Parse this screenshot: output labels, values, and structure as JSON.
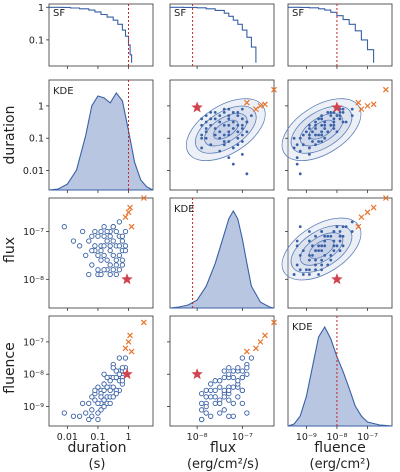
{
  "chart_data": {
    "type": "scatter",
    "grid": "corner",
    "variables": [
      {
        "key": "duration",
        "ylabel": "duration",
        "xlabel": "duration",
        "unit": "(s)",
        "ticks": [
          "0.01",
          "0.1",
          "1"
        ],
        "range_log10": [
          -2.6,
          0.8
        ]
      },
      {
        "key": "flux",
        "ylabel": "flux",
        "xlabel": "flux",
        "unit": "(erg/cm²/s)",
        "ticks": [
          "10⁻⁸",
          "10⁻⁷"
        ],
        "range_log10": [
          -8.6,
          -6.3
        ]
      },
      {
        "key": "fluence",
        "ylabel": "fluence",
        "xlabel": "fluence",
        "unit": "(erg/cm²)",
        "ticks": [
          "10⁻⁹",
          "10⁻⁸",
          "10⁻⁷"
        ],
        "range_log10": [
          -9.6,
          -6.2
        ]
      }
    ],
    "sf_panel": {
      "label": "SF",
      "yticks": [
        "1",
        "0.1"
      ],
      "survival_top": [
        {
          "x_log10": [
            -2.6,
            -2.2,
            -1.9,
            -1.6,
            -1.3,
            -1.1,
            -0.9,
            -0.7,
            -0.5,
            -0.35,
            -0.2,
            -0.1,
            0.0,
            0.05,
            0.1
          ],
          "sf": [
            1,
            0.99,
            0.95,
            0.9,
            0.82,
            0.72,
            0.6,
            0.5,
            0.4,
            0.3,
            0.2,
            0.13,
            0.07,
            0.035,
            0.02
          ]
        },
        {
          "x_log10": [
            -8.6,
            -8.3,
            -8.0,
            -7.8,
            -7.6,
            -7.4,
            -7.3,
            -7.2,
            -7.1,
            -7.0,
            -6.9,
            -6.8,
            -6.7
          ],
          "sf": [
            1,
            0.99,
            0.96,
            0.9,
            0.8,
            0.66,
            0.53,
            0.4,
            0.3,
            0.2,
            0.12,
            0.06,
            0.02
          ]
        },
        {
          "x_log10": [
            -9.6,
            -9.2,
            -8.9,
            -8.6,
            -8.4,
            -8.2,
            -8.0,
            -7.8,
            -7.6,
            -7.4,
            -7.2,
            -7.0,
            -6.8
          ],
          "sf": [
            1,
            0.99,
            0.96,
            0.9,
            0.82,
            0.7,
            0.55,
            0.42,
            0.3,
            0.19,
            0.1,
            0.05,
            0.02
          ]
        }
      ],
      "threshold_log10": [
        0.0,
        -8.1,
        -8.0
      ]
    },
    "kde_label": "KDE",
    "kde_diag": [
      {
        "x": [
          -2.6,
          -2.3,
          -2.0,
          -1.7,
          -1.4,
          -1.2,
          -1.0,
          -0.8,
          -0.6,
          -0.4,
          -0.2,
          0.0,
          0.2,
          0.4,
          0.6,
          0.8
        ],
        "y": [
          0.0,
          0.01,
          0.06,
          0.2,
          0.55,
          0.85,
          0.95,
          0.93,
          0.88,
          0.98,
          0.9,
          0.6,
          0.28,
          0.1,
          0.03,
          0.0
        ]
      },
      {
        "x": [
          -8.6,
          -8.4,
          -8.2,
          -8.0,
          -7.8,
          -7.6,
          -7.4,
          -7.3,
          -7.2,
          -7.1,
          -7.0,
          -6.9,
          -6.8,
          -6.6,
          -6.4,
          -6.3
        ],
        "y": [
          0.0,
          0.01,
          0.03,
          0.08,
          0.22,
          0.45,
          0.75,
          0.9,
          0.98,
          0.9,
          0.7,
          0.45,
          0.22,
          0.06,
          0.01,
          0.0
        ]
      },
      {
        "x": [
          -9.6,
          -9.4,
          -9.2,
          -9.0,
          -8.8,
          -8.6,
          -8.4,
          -8.2,
          -8.0,
          -7.8,
          -7.6,
          -7.4,
          -7.2,
          -7.0,
          -6.6,
          -6.2
        ],
        "y": [
          0.0,
          0.02,
          0.1,
          0.3,
          0.6,
          0.9,
          1.0,
          0.88,
          0.7,
          0.55,
          0.38,
          0.2,
          0.1,
          0.04,
          0.01,
          0.0
        ]
      }
    ],
    "samples": [
      [
        -0.3,
        -7.1,
        -7.9
      ],
      [
        -0.6,
        -7.3,
        -8.4
      ],
      [
        -0.9,
        -7.0,
        -8.5
      ],
      [
        -1.1,
        -7.4,
        -8.6
      ],
      [
        -0.5,
        -6.9,
        -7.7
      ],
      [
        -0.2,
        -7.2,
        -7.9
      ],
      [
        -0.8,
        -7.5,
        -8.8
      ],
      [
        -1.3,
        -7.2,
        -8.9
      ],
      [
        -0.4,
        -7.6,
        -8.5
      ],
      [
        -0.7,
        -7.8,
        -8.9
      ],
      [
        -1.0,
        -7.1,
        -8.4
      ],
      [
        -0.1,
        -7.3,
        -7.8
      ],
      [
        -0.6,
        -7.0,
        -8.1
      ],
      [
        -1.5,
        -7.0,
        -8.9
      ],
      [
        -0.9,
        -7.6,
        -8.9
      ],
      [
        -0.3,
        -7.5,
        -8.2
      ],
      [
        -0.5,
        -7.2,
        -8.1
      ],
      [
        -1.2,
        -7.4,
        -9.1
      ],
      [
        -0.8,
        -6.9,
        -8.0
      ],
      [
        -0.2,
        -7.7,
        -8.3
      ],
      [
        -0.6,
        -7.9,
        -8.9
      ],
      [
        -1.0,
        -7.8,
        -9.2
      ],
      [
        -0.4,
        -7.0,
        -7.9
      ],
      [
        -0.7,
        -7.2,
        -8.4
      ],
      [
        -1.6,
        -7.3,
        -9.3
      ],
      [
        -0.3,
        -6.8,
        -7.5
      ],
      [
        -0.9,
        -7.3,
        -8.6
      ],
      [
        -0.5,
        -7.5,
        -8.4
      ],
      [
        -1.1,
        -7.0,
        -8.5
      ],
      [
        -0.1,
        -7.0,
        -7.5
      ],
      [
        -0.7,
        -7.6,
        -8.7
      ],
      [
        -1.4,
        -7.5,
        -9.2
      ],
      [
        -0.2,
        -7.4,
        -8.1
      ],
      [
        -0.6,
        -7.7,
        -8.7
      ],
      [
        -0.8,
        -7.1,
        -8.3
      ],
      [
        -1.8,
        -7.2,
        -9.3
      ],
      [
        -0.4,
        -7.3,
        -8.1
      ],
      [
        -1.0,
        -7.9,
        -9.4
      ],
      [
        -0.3,
        -7.8,
        -8.5
      ],
      [
        -0.9,
        -7.4,
        -8.7
      ],
      [
        -0.5,
        -6.9,
        -7.8
      ],
      [
        -1.2,
        -7.7,
        -9.3
      ],
      [
        -0.6,
        -7.4,
        -8.5
      ],
      [
        -0.8,
        -7.8,
        -9.0
      ],
      [
        -0.2,
        -7.1,
        -7.8
      ],
      [
        -1.1,
        -7.3,
        -8.8
      ],
      [
        -0.4,
        -7.7,
        -8.5
      ],
      [
        -0.7,
        -7.0,
        -8.1
      ],
      [
        -1.3,
        -7.9,
        -9.4
      ],
      [
        -0.3,
        -7.3,
        -8.0
      ],
      [
        -0.5,
        -7.8,
        -8.7
      ],
      [
        -1.0,
        -7.5,
        -8.9
      ],
      [
        -0.6,
        -7.1,
        -8.2
      ],
      [
        -0.9,
        -7.9,
        -9.1
      ],
      [
        -0.1,
        -7.4,
        -7.9
      ],
      [
        -2.1,
        -6.9,
        -9.2
      ],
      [
        -0.8,
        -7.3,
        -8.5
      ],
      [
        -0.4,
        -7.9,
        -8.6
      ],
      [
        -1.2,
        -7.1,
        -8.7
      ],
      [
        -0.2,
        -7.6,
        -8.2
      ]
    ],
    "outliers_x": [
      [
        0.05,
        -6.5,
        -6.8
      ],
      [
        -0.1,
        -6.7,
        -7.2
      ],
      [
        0.1,
        -6.9,
        -7.3
      ],
      [
        0.0,
        -6.6,
        -7.0
      ],
      [
        0.5,
        -6.3,
        -6.4
      ]
    ],
    "star": [
      -0.05,
      -8.0,
      -8.0
    ],
    "colors": {
      "fill": "#b9c6e1",
      "line": "#3a61a6",
      "point": "#3a61a6",
      "x": "#e8742a",
      "star": "#cf4450",
      "threshold": "#cc2222",
      "contour": "#5d7fb8"
    }
  }
}
